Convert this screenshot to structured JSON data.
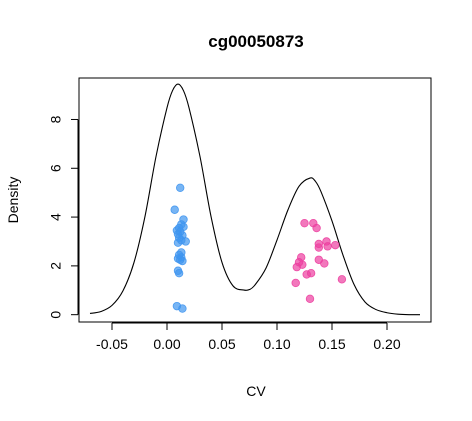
{
  "chart_data": {
    "type": "scatter",
    "title": "cg00050873",
    "xlabel": "CV",
    "ylabel": "Density",
    "xlim": [
      -0.08,
      0.24
    ],
    "ylim": [
      -0.3,
      9.7
    ],
    "xticks": [
      -0.05,
      0.0,
      0.05,
      0.1,
      0.15,
      0.2
    ],
    "xtick_labels": [
      "-0.05",
      "0.00",
      "0.05",
      "0.10",
      "0.15",
      "0.20"
    ],
    "yticks": [
      0,
      2,
      4,
      6,
      8
    ],
    "ytick_labels": [
      "0",
      "2",
      "4",
      "6",
      "8"
    ],
    "grid": false,
    "legend": "none",
    "density_curve": {
      "name": "",
      "color": "#000000",
      "x": [
        -0.07,
        -0.06,
        -0.05,
        -0.04,
        -0.03,
        -0.02,
        -0.01,
        0.0,
        0.005,
        0.01,
        0.015,
        0.02,
        0.03,
        0.04,
        0.05,
        0.06,
        0.07,
        0.075,
        0.08,
        0.09,
        0.1,
        0.11,
        0.12,
        0.13,
        0.135,
        0.14,
        0.15,
        0.16,
        0.17,
        0.18,
        0.19,
        0.2,
        0.21,
        0.22,
        0.23
      ],
      "y": [
        0.05,
        0.13,
        0.38,
        0.98,
        2.14,
        4.03,
        6.48,
        8.48,
        9.18,
        9.45,
        9.18,
        8.48,
        6.48,
        4.03,
        2.14,
        1.18,
        1.01,
        1.03,
        1.22,
        1.91,
        3.06,
        4.3,
        5.26,
        5.6,
        5.46,
        5.04,
        3.84,
        2.44,
        1.24,
        0.52,
        0.21,
        0.08,
        0.02,
        0.0,
        0.0
      ]
    },
    "series": [
      {
        "color": "#3f95ef",
        "points": [
          [
            0.012,
            5.2
          ],
          [
            0.007,
            4.3
          ],
          [
            0.015,
            3.9
          ],
          [
            0.013,
            3.7
          ],
          [
            0.015,
            3.6
          ],
          [
            0.011,
            3.55
          ],
          [
            0.009,
            3.45
          ],
          [
            0.012,
            3.4
          ],
          [
            0.01,
            3.3
          ],
          [
            0.014,
            3.25
          ],
          [
            0.011,
            3.15
          ],
          [
            0.013,
            3.05
          ],
          [
            0.017,
            3.0
          ],
          [
            0.01,
            2.95
          ],
          [
            0.013,
            2.55
          ],
          [
            0.011,
            2.45
          ],
          [
            0.013,
            2.35
          ],
          [
            0.01,
            2.3
          ],
          [
            0.012,
            2.25
          ],
          [
            0.014,
            2.2
          ],
          [
            0.01,
            1.8
          ],
          [
            0.011,
            1.7
          ],
          [
            0.009,
            0.35
          ],
          [
            0.014,
            0.25
          ]
        ]
      },
      {
        "color": "#ec3fa0",
        "points": [
          [
            0.125,
            3.75
          ],
          [
            0.133,
            3.75
          ],
          [
            0.136,
            3.55
          ],
          [
            0.145,
            3.0
          ],
          [
            0.138,
            2.9
          ],
          [
            0.153,
            2.85
          ],
          [
            0.146,
            2.8
          ],
          [
            0.138,
            2.75
          ],
          [
            0.122,
            2.35
          ],
          [
            0.138,
            2.25
          ],
          [
            0.12,
            2.15
          ],
          [
            0.143,
            2.1
          ],
          [
            0.123,
            2.05
          ],
          [
            0.118,
            1.95
          ],
          [
            0.131,
            1.7
          ],
          [
            0.127,
            1.65
          ],
          [
            0.159,
            1.45
          ],
          [
            0.117,
            1.3
          ],
          [
            0.13,
            0.65
          ]
        ]
      }
    ]
  }
}
